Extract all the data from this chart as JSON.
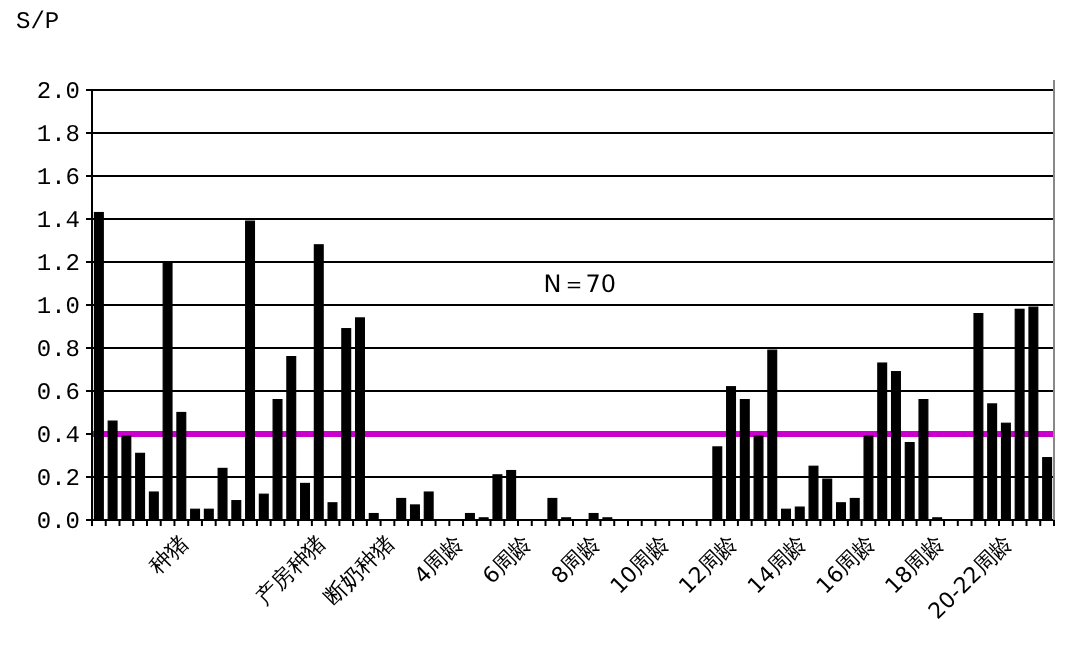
{
  "chart_data": {
    "type": "bar",
    "ylabel": "S/P",
    "annotations": [
      "N＝70"
    ],
    "categories": [
      null,
      null,
      null,
      null,
      null,
      null,
      "种猪",
      null,
      null,
      null,
      null,
      null,
      null,
      null,
      null,
      null,
      "产房种猪",
      null,
      null,
      null,
      null,
      "断奶种猪",
      null,
      null,
      null,
      null,
      "4周龄",
      null,
      null,
      null,
      null,
      "6周龄",
      null,
      null,
      null,
      null,
      "8周龄",
      null,
      null,
      null,
      null,
      "10周龄",
      null,
      null,
      null,
      null,
      "12周龄",
      null,
      null,
      null,
      null,
      "14周龄",
      null,
      null,
      null,
      null,
      "16周龄",
      null,
      null,
      null,
      null,
      "18周龄",
      null,
      null,
      null,
      null,
      "20-22周龄",
      null,
      null,
      null
    ],
    "values": [
      1.43,
      0.46,
      0.39,
      0.31,
      0.13,
      1.2,
      0.5,
      0.05,
      0.05,
      0.24,
      0.09,
      1.39,
      0.12,
      0.56,
      0.76,
      0.17,
      1.28,
      0.08,
      0.89,
      0.94,
      0.03,
      0,
      0.1,
      0.07,
      0.13,
      0,
      0,
      0.03,
      0.01,
      0.21,
      0.23,
      0,
      0,
      0.1,
      0.01,
      0,
      0.03,
      0.01,
      0,
      0,
      0,
      0,
      0,
      0,
      0,
      0.34,
      0.62,
      0.56,
      0.39,
      0.79,
      0.05,
      0.06,
      0.25,
      0.19,
      0.08,
      0.1,
      0.39,
      0.73,
      0.69,
      0.36,
      0.56,
      0.01,
      0,
      0,
      0.96,
      0.54,
      0.45,
      0.98,
      0.99,
      0.29
    ],
    "color": "#000000",
    "ylim": [
      0,
      2
    ],
    "yticks": [
      {
        "value": 0,
        "label": "0.0"
      },
      {
        "value": 0.2,
        "label": "0.2"
      },
      {
        "value": 0.4,
        "label": "0.4"
      },
      {
        "value": 0.6,
        "label": "0.6"
      },
      {
        "value": 0.8,
        "label": "0.8"
      },
      {
        "value": 1,
        "label": "1.0"
      },
      {
        "value": 1.2,
        "label": "1.2"
      },
      {
        "value": 1.4,
        "label": "1.4"
      },
      {
        "value": 1.6,
        "label": "1.6"
      },
      {
        "value": 1.8,
        "label": "1.8"
      },
      {
        "value": 2,
        "label": "2.0"
      }
    ],
    "grid": "y",
    "ref_lines": [
      {
        "axis": "y",
        "value": 0.4,
        "color": "#cc00cc"
      }
    ]
  }
}
